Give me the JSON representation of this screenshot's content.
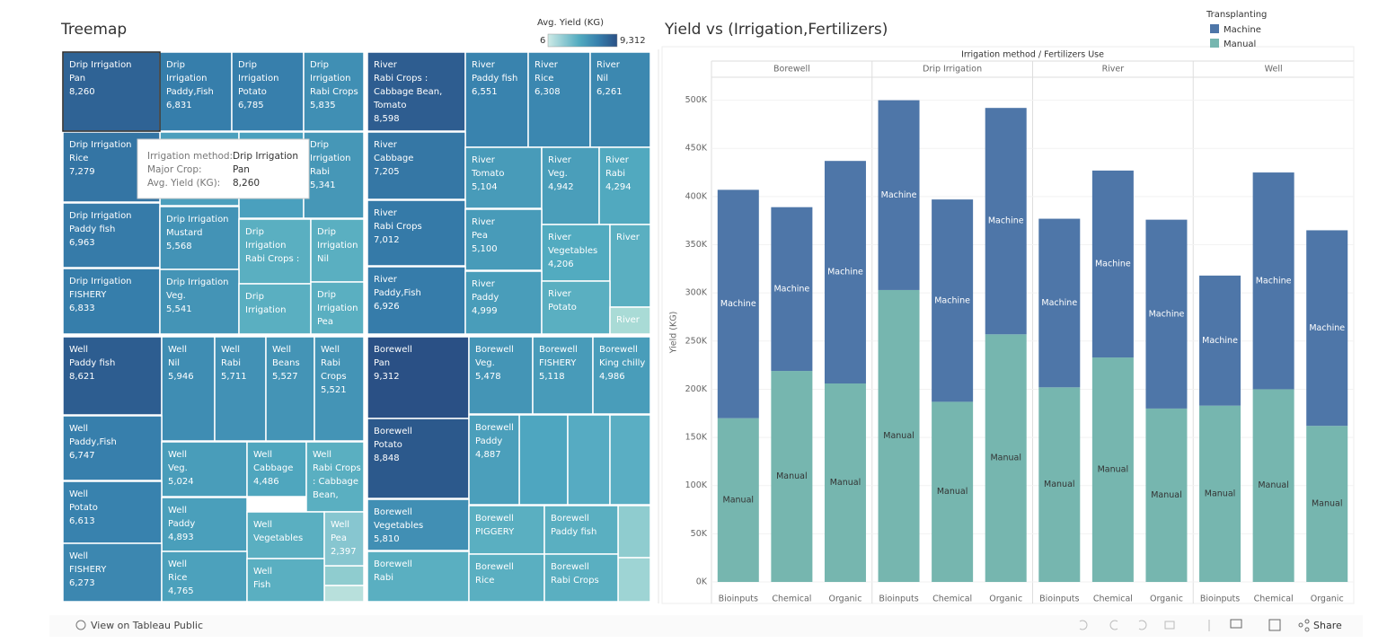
{
  "chart_data": [
    {
      "type": "treemap",
      "title": "Treemap",
      "color_legend": {
        "title": "Avg. Yield (KG)",
        "range": [
          6,
          {
            "value": 9312,
            "label": "9,312"
          }
        ]
      },
      "cells": [
        {
          "lines": [
            "Drip Irrigation",
            "Pan"
          ],
          "value": 8260,
          "value_label": "8,260"
        },
        {
          "lines": [
            "Drip",
            "Irrigation",
            "Paddy,Fish"
          ],
          "value": 6831,
          "value_label": "6,831"
        },
        {
          "lines": [
            "Drip",
            "Irrigation",
            "Potato"
          ],
          "value": 6785,
          "value_label": "6,785"
        },
        {
          "lines": [
            "Drip",
            "Irrigation",
            "Rabi Crops"
          ],
          "value": 5835,
          "value_label": "5,835"
        },
        {
          "lines": [
            "Drip Irrigation",
            "Rice"
          ],
          "value": 7279,
          "value_label": "7,279"
        },
        {
          "lines": [
            "Drip",
            "Irrigation",
            "Rabi"
          ],
          "value": 5341,
          "value_label": "5,341"
        },
        {
          "lines": [
            "Drip Irrigation",
            "Paddy fish"
          ],
          "value": 6963,
          "value_label": "6,963"
        },
        {
          "lines": [
            "Drip Irrigation",
            "Mustard"
          ],
          "value": 5568,
          "value_label": "5,568"
        },
        {
          "lines": [
            "Drip",
            "Irrigation",
            "Rabi Crops :"
          ],
          "value": null
        },
        {
          "lines": [
            "Drip",
            "Irrigation",
            "Nil"
          ],
          "value": null
        },
        {
          "lines": [
            "Drip Irrigation",
            "FISHERY"
          ],
          "value": 6833,
          "value_label": "6,833"
        },
        {
          "lines": [
            "Drip Irrigation",
            "Veg."
          ],
          "value": 5541,
          "value_label": "5,541"
        },
        {
          "lines": [
            "Drip",
            "Irrigation"
          ],
          "value": null
        },
        {
          "lines": [
            "Drip",
            "Irrigation",
            "Pea"
          ],
          "value": null
        },
        {
          "lines": [
            "River",
            "Rabi Crops :",
            "Cabbage Bean,",
            "Tomato"
          ],
          "value": 8598,
          "value_label": "8,598"
        },
        {
          "lines": [
            "River",
            "Paddy fish"
          ],
          "value": 6551,
          "value_label": "6,551"
        },
        {
          "lines": [
            "River",
            "Rice"
          ],
          "value": 6308,
          "value_label": "6,308"
        },
        {
          "lines": [
            "River",
            "Nil"
          ],
          "value": 6261,
          "value_label": "6,261"
        },
        {
          "lines": [
            "River",
            "Cabbage"
          ],
          "value": 7205,
          "value_label": "7,205"
        },
        {
          "lines": [
            "River",
            "Tomato"
          ],
          "value": 5104,
          "value_label": "5,104"
        },
        {
          "lines": [
            "River",
            "Veg."
          ],
          "value": 4942,
          "value_label": "4,942"
        },
        {
          "lines": [
            "River",
            "Rabi"
          ],
          "value": 4294,
          "value_label": "4,294"
        },
        {
          "lines": [
            "River",
            "Rabi Crops"
          ],
          "value": 7012,
          "value_label": "7,012"
        },
        {
          "lines": [
            "River",
            "Pea"
          ],
          "value": 5100,
          "value_label": "5,100"
        },
        {
          "lines": [
            "River",
            "Vegetables"
          ],
          "value": 4206,
          "value_label": "4,206"
        },
        {
          "lines": [
            "River"
          ],
          "value": null
        },
        {
          "lines": [
            "River",
            "Paddy,Fish"
          ],
          "value": 6926,
          "value_label": "6,926"
        },
        {
          "lines": [
            "River",
            "Paddy"
          ],
          "value": 4999,
          "value_label": "4,999"
        },
        {
          "lines": [
            "River",
            "Potato"
          ],
          "value": null
        },
        {
          "lines": [
            "River"
          ],
          "value": null
        },
        {
          "lines": [
            "Well",
            "Paddy fish"
          ],
          "value": 8621,
          "value_label": "8,621"
        },
        {
          "lines": [
            "Well",
            "Nil"
          ],
          "value": 5946,
          "value_label": "5,946"
        },
        {
          "lines": [
            "Well",
            "Rabi"
          ],
          "value": 5711,
          "value_label": "5,711"
        },
        {
          "lines": [
            "Well",
            "Beans"
          ],
          "value": 5527,
          "value_label": "5,527"
        },
        {
          "lines": [
            "Well",
            "Rabi",
            "Crops"
          ],
          "value": 5521,
          "value_label": "5,521"
        },
        {
          "lines": [
            "Well",
            "Paddy,Fish"
          ],
          "value": 6747,
          "value_label": "6,747"
        },
        {
          "lines": [
            "Well",
            "Veg."
          ],
          "value": 5024,
          "value_label": "5,024"
        },
        {
          "lines": [
            "Well",
            "Cabbage"
          ],
          "value": 4486,
          "value_label": "4,486"
        },
        {
          "lines": [
            "Well",
            "Rabi Crops",
            ": Cabbage",
            "Bean,"
          ],
          "value": null
        },
        {
          "lines": [
            "Well",
            "Potato"
          ],
          "value": 6613,
          "value_label": "6,613"
        },
        {
          "lines": [
            "Well",
            "Paddy"
          ],
          "value": 4893,
          "value_label": "4,893"
        },
        {
          "lines": [
            "Well",
            "Vegetables"
          ],
          "value": null
        },
        {
          "lines": [
            "Well",
            "Pea"
          ],
          "value": 2397,
          "value_label": "2,397"
        },
        {
          "lines": [
            "Well",
            "FISHERY"
          ],
          "value": 6273,
          "value_label": "6,273"
        },
        {
          "lines": [
            "Well",
            "Rice"
          ],
          "value": 4765,
          "value_label": "4,765"
        },
        {
          "lines": [
            "Well",
            "Fish"
          ],
          "value": null
        },
        {
          "lines": [
            "Borewell",
            "Pan"
          ],
          "value": 9312,
          "value_label": "9,312"
        },
        {
          "lines": [
            "Borewell",
            "Veg."
          ],
          "value": 5478,
          "value_label": "5,478"
        },
        {
          "lines": [
            "Borewell",
            "FISHERY"
          ],
          "value": 5118,
          "value_label": "5,118"
        },
        {
          "lines": [
            "Borewell",
            "King chilly"
          ],
          "value": 4986,
          "value_label": "4,986"
        },
        {
          "lines": [
            "Borewell",
            "Potato"
          ],
          "value": 8848,
          "value_label": "8,848"
        },
        {
          "lines": [
            "Borewell",
            "Paddy"
          ],
          "value": 4887,
          "value_label": "4,887"
        },
        {
          "lines": [
            "Borewell",
            "Vegetables"
          ],
          "value": 5810,
          "value_label": "5,810"
        },
        {
          "lines": [
            "Borewell",
            "PIGGERY"
          ],
          "value": null
        },
        {
          "lines": [
            "Borewell",
            "Paddy fish"
          ],
          "value": null
        },
        {
          "lines": [
            "Borewell",
            "Rabi"
          ],
          "value": null
        },
        {
          "lines": [
            "Borewell",
            "Rice"
          ],
          "value": null
        },
        {
          "lines": [
            "Borewell",
            "Rabi Crops"
          ],
          "value": null
        }
      ],
      "tooltip": {
        "rows": [
          [
            "Irrigation method:",
            "Drip Irrigation"
          ],
          [
            "Major Crop:",
            "Pan"
          ],
          [
            "Avg. Yield (KG):",
            "8,260"
          ]
        ]
      }
    },
    {
      "type": "stacked-bar",
      "title": "Yield vs (Irrigation,Fertilizers)",
      "header": "Irrigation method / Fertilizers Use",
      "groups": [
        "Borewell",
        "Drip Irrigation",
        "River",
        "Well"
      ],
      "categories": [
        "Bioinputs",
        "Chemical",
        "Organic",
        "Bioinputs",
        "Chemical",
        "Organic",
        "Bioinputs",
        "Chemical",
        "Organic",
        "Bioinputs",
        "Chemical",
        "Organic"
      ],
      "y_label": "Yield (KG)",
      "legend_title": "Transplanting",
      "legend": "top-right",
      "series": [
        {
          "name": "Machine",
          "color": "#4e76a8",
          "values": [
            237000,
            170000,
            231000,
            197000,
            210000,
            235000,
            175000,
            194000,
            196000,
            135000,
            225000,
            203000
          ]
        },
        {
          "name": "Manual",
          "color": "#76b6af",
          "values": [
            170000,
            219000,
            206000,
            303000,
            187000,
            257000,
            202000,
            233000,
            180000,
            183000,
            200000,
            162000
          ]
        }
      ],
      "ylim": [
        -8000,
        522000
      ],
      "yticks": [
        {
          "value": 0,
          "label": "0K"
        },
        {
          "value": 50000,
          "label": "50K"
        },
        {
          "value": 100000,
          "label": "100K"
        },
        {
          "value": 150000,
          "label": "150K"
        },
        {
          "value": 200000,
          "label": "200K"
        },
        {
          "value": 250000,
          "label": "250K"
        },
        {
          "value": 300000,
          "label": "300K"
        },
        {
          "value": 350000,
          "label": "350K"
        },
        {
          "value": 400000,
          "label": "400K"
        },
        {
          "value": 450000,
          "label": "450K"
        },
        {
          "value": 500000,
          "label": "500K"
        }
      ],
      "grid": true
    }
  ],
  "footer": {
    "link": "View on Tableau Public",
    "share": "Share"
  }
}
